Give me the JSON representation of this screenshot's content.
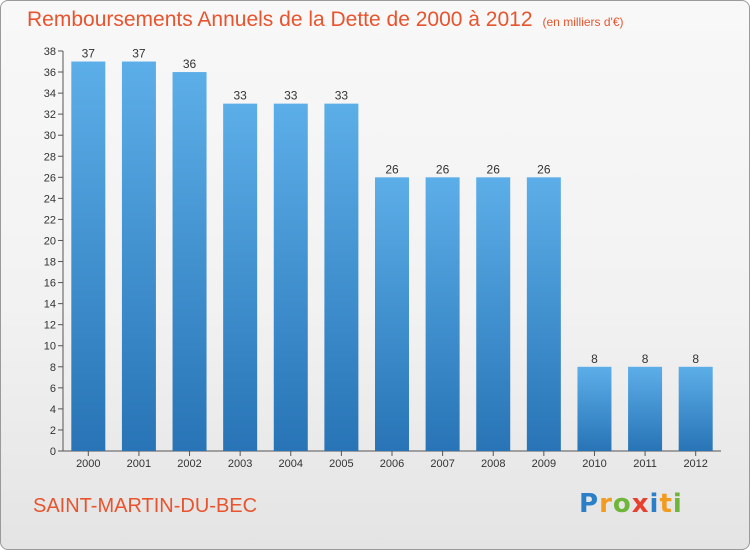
{
  "title": "Remboursements Annuels de la Dette de 2000 à 2012",
  "subtitle": "(en milliers d'€)",
  "town": "SAINT-MARTIN-DU-BEC",
  "brand": {
    "letters": [
      "P",
      "r",
      "o",
      "x",
      "i",
      "t",
      "i"
    ],
    "colors": [
      "#2b7fc9",
      "#f29b1f",
      "#6fb53a",
      "#e8402d",
      "#2b7fc9",
      "#f29b1f",
      "#6fb53a"
    ]
  },
  "colors": {
    "bar_top": "#5caee8",
    "bar_bottom": "#2874b6",
    "text_accent": "#e8542e"
  },
  "chart_data": {
    "type": "bar",
    "categories": [
      "2000",
      "2001",
      "2002",
      "2003",
      "2004",
      "2005",
      "2006",
      "2007",
      "2008",
      "2009",
      "2010",
      "2011",
      "2012"
    ],
    "values": [
      37,
      37,
      36,
      33,
      33,
      33,
      26,
      26,
      26,
      26,
      8,
      8,
      8
    ],
    "ylim": [
      0,
      38
    ],
    "yticks": [
      0,
      2,
      4,
      6,
      8,
      10,
      12,
      14,
      16,
      18,
      20,
      22,
      24,
      26,
      28,
      30,
      32,
      34,
      36,
      38
    ],
    "grid": false,
    "data_labels": true
  }
}
